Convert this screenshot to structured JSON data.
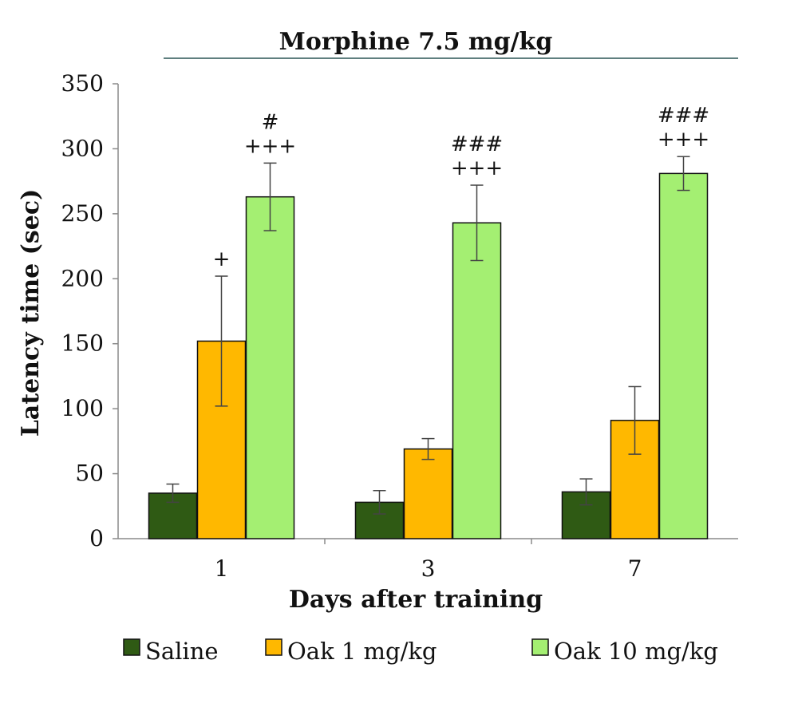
{
  "chart_data": {
    "type": "bar",
    "title": "Morphine 7.5 mg/kg",
    "xlabel": "Days after training",
    "ylabel": "Latency time (sec)",
    "ylim": [
      0,
      350
    ],
    "yticks": [
      0,
      50,
      100,
      150,
      200,
      250,
      300,
      350
    ],
    "categories": [
      "1",
      "3",
      "7"
    ],
    "legend_position": "bottom",
    "grid": false,
    "series": [
      {
        "name": "Saline",
        "color": "#2f5a14",
        "values": [
          35,
          28,
          36
        ],
        "errors": [
          7,
          9,
          10
        ],
        "annotations": [
          [],
          [],
          []
        ]
      },
      {
        "name": "Oak 1 mg/kg",
        "color": "#ffb800",
        "values": [
          152,
          69,
          91
        ],
        "errors": [
          50,
          8,
          26
        ],
        "annotations": [
          [
            "+"
          ],
          [],
          []
        ]
      },
      {
        "name": "Oak 10 mg/kg",
        "color": "#a4ef72",
        "values": [
          263,
          243,
          281
        ],
        "errors": [
          26,
          29,
          13
        ],
        "annotations": [
          [
            "#",
            "+++"
          ],
          [
            "###",
            "+++"
          ],
          [
            "###",
            "+++"
          ]
        ]
      }
    ]
  }
}
